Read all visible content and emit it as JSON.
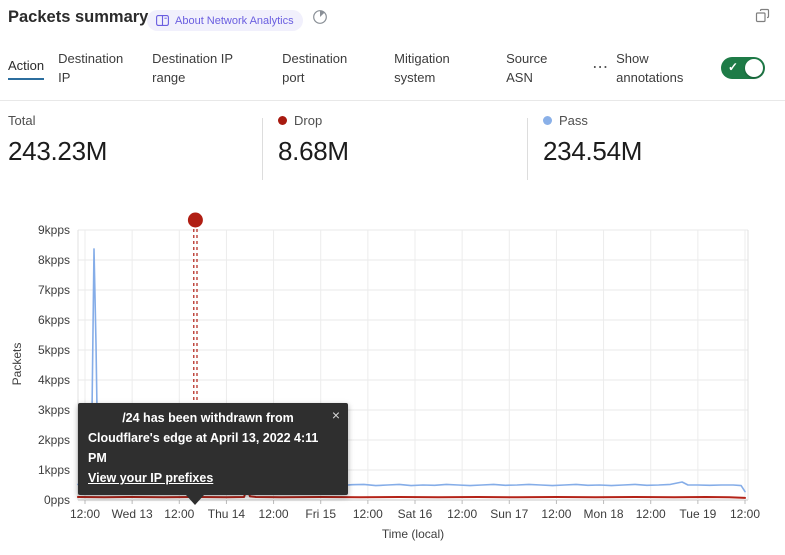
{
  "header": {
    "title": "Packets summary",
    "about_badge": "About Network Analytics"
  },
  "tabs": {
    "items": [
      {
        "label": "Action",
        "active": true
      },
      {
        "label": "Destination IP",
        "active": false
      },
      {
        "label": "Destination IP range",
        "active": false
      },
      {
        "label": "Destination port",
        "active": false
      },
      {
        "label": "Mitigation system",
        "active": false
      },
      {
        "label": "Source ASN",
        "active": false
      }
    ],
    "show_annotations_label": "Show annotations",
    "show_annotations_on": true
  },
  "stats": [
    {
      "label": "Total",
      "value": "243.23M"
    },
    {
      "label": "Drop",
      "value": "8.68M",
      "dot_color": "#a81a10"
    },
    {
      "label": "Pass",
      "value": "234.54M",
      "dot_color": "#8ab0e8"
    }
  ],
  "icons": {
    "close": "×",
    "check": "✓",
    "more": "⋯"
  },
  "colors": {
    "active_tab_underline": "#2c6e9e",
    "toggle_on": "#1e7b47",
    "badge_text": "#6a5ee0",
    "badge_bg": "#f1f0fc",
    "pass_line": "#85ade8",
    "drop_line": "#b42318",
    "annotation": "#b01e13",
    "tooltip_bg": "#2f2f2f"
  },
  "chart_data": {
    "type": "line",
    "title": "Packets summary",
    "xlabel": "Time (local)",
    "ylabel": "Packets",
    "x_ticks": [
      "12:00",
      "Wed 13",
      "12:00",
      "Thu 14",
      "12:00",
      "Fri 15",
      "12:00",
      "Sat 16",
      "12:00",
      "Sun 17",
      "12:00",
      "Mon 18",
      "12:00",
      "Tue 19",
      "12:00"
    ],
    "x_unit": "hours since first tick (Tue Apr 12 12:00), ticks every 12h",
    "y_ticks": [
      "0pps",
      "1kpps",
      "2kpps",
      "3kpps",
      "4kpps",
      "5kpps",
      "6kpps",
      "7kpps",
      "8kpps",
      "9kpps"
    ],
    "ylim": [
      0,
      9
    ],
    "grid": true,
    "series": [
      {
        "name": "Pass",
        "color": "#85ade8",
        "width": 1.6,
        "points": [
          [
            -1.8,
            0.52
          ],
          [
            -0.6,
            0.5
          ],
          [
            0.4,
            0.55
          ],
          [
            1.2,
            0.8
          ],
          [
            1.8,
            3.2
          ],
          [
            2.3,
            8.37
          ],
          [
            2.8,
            5.2
          ],
          [
            3.2,
            1.7
          ],
          [
            3.9,
            0.95
          ],
          [
            4.8,
            0.8
          ],
          [
            5.8,
            0.6
          ],
          [
            7.5,
            0.55
          ],
          [
            9.5,
            0.5
          ],
          [
            12,
            0.52
          ],
          [
            15,
            0.5
          ],
          [
            17.3,
            0.7
          ],
          [
            18.6,
            0.54
          ],
          [
            21,
            0.5
          ],
          [
            24.3,
            0.64
          ],
          [
            25.6,
            0.52
          ],
          [
            28,
            0.5
          ],
          [
            31,
            0.53
          ],
          [
            34.3,
            0.6
          ],
          [
            35.6,
            0.5
          ],
          [
            38,
            0.48
          ],
          [
            41,
            0.52
          ],
          [
            44,
            0.5
          ],
          [
            47,
            0.53
          ],
          [
            50,
            0.55
          ],
          [
            53,
            0.5
          ],
          [
            56,
            0.48
          ],
          [
            59,
            0.52
          ],
          [
            62,
            0.5
          ],
          [
            65,
            0.48
          ],
          [
            68,
            0.51
          ],
          [
            71,
            0.52
          ],
          [
            74,
            0.48
          ],
          [
            77,
            0.5
          ],
          [
            80,
            0.52
          ],
          [
            83,
            0.48
          ],
          [
            86,
            0.5
          ],
          [
            89,
            0.49
          ],
          [
            92,
            0.52
          ],
          [
            95,
            0.5
          ],
          [
            98,
            0.48
          ],
          [
            101,
            0.5
          ],
          [
            104,
            0.52
          ],
          [
            107,
            0.49
          ],
          [
            110,
            0.5
          ],
          [
            113,
            0.52
          ],
          [
            116,
            0.5
          ],
          [
            119,
            0.48
          ],
          [
            122,
            0.5
          ],
          [
            125,
            0.52
          ],
          [
            128,
            0.49
          ],
          [
            131,
            0.5
          ],
          [
            134,
            0.48
          ],
          [
            137,
            0.5
          ],
          [
            140,
            0.52
          ],
          [
            143,
            0.49
          ],
          [
            146,
            0.5
          ],
          [
            149,
            0.52
          ],
          [
            152,
            0.6
          ],
          [
            153.5,
            0.5
          ],
          [
            156,
            0.5
          ],
          [
            159,
            0.49
          ],
          [
            162,
            0.5
          ],
          [
            165,
            0.5
          ],
          [
            167,
            0.48
          ],
          [
            168,
            0.28
          ]
        ]
      },
      {
        "name": "Drop",
        "color": "#b42318",
        "width": 2,
        "points": [
          [
            -1.8,
            0.1
          ],
          [
            5,
            0.09
          ],
          [
            12,
            0.1
          ],
          [
            20,
            0.09
          ],
          [
            28,
            0.1
          ],
          [
            36,
            0.09
          ],
          [
            40.5,
            0.1
          ],
          [
            41.2,
            0.42
          ],
          [
            42,
            0.12
          ],
          [
            43.5,
            0.1
          ],
          [
            50,
            0.09
          ],
          [
            60,
            0.1
          ],
          [
            70,
            0.09
          ],
          [
            80,
            0.1
          ],
          [
            90,
            0.09
          ],
          [
            100,
            0.1
          ],
          [
            110,
            0.09
          ],
          [
            120,
            0.1
          ],
          [
            130,
            0.09
          ],
          [
            140,
            0.1
          ],
          [
            150,
            0.09
          ],
          [
            158,
            0.1
          ],
          [
            164,
            0.09
          ],
          [
            168,
            0.07
          ]
        ]
      }
    ],
    "annotation": {
      "x_hours": 28.1,
      "color": "#b01e13",
      "marker": "red dot above plot with double dashed vertical line",
      "tooltip_line1": "/24 has been withdrawn from",
      "tooltip_line2": "Cloudflare's edge at April 13, 2022 4:11 PM",
      "tooltip_link": "View your IP prefixes"
    }
  }
}
